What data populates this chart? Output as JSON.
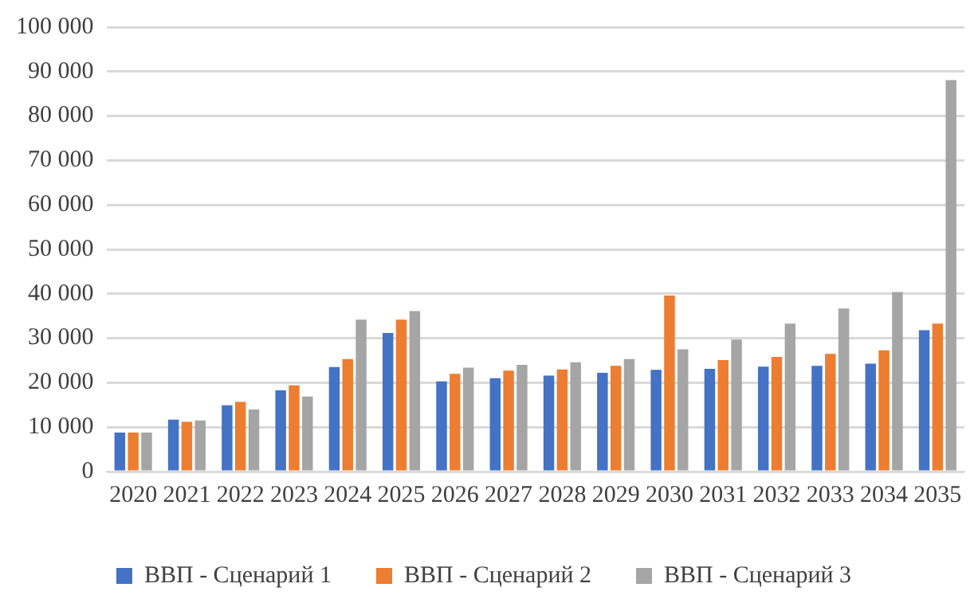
{
  "chart_data": {
    "type": "bar",
    "categories": [
      "2020",
      "2021",
      "2022",
      "2023",
      "2024",
      "2025",
      "2026",
      "2027",
      "2028",
      "2029",
      "2030",
      "2031",
      "2032",
      "2033",
      "2034",
      "2035"
    ],
    "series": [
      {
        "name": "ВВП - Сценарий 1",
        "color": "#4472c4",
        "values": [
          8800,
          11700,
          14900,
          18300,
          23500,
          31200,
          20300,
          21000,
          21600,
          22200,
          22900,
          23100,
          23600,
          23800,
          24300,
          31800
        ]
      },
      {
        "name": "ВВП - Сценарий 2",
        "color": "#ed7d31",
        "values": [
          8800,
          11200,
          15700,
          19400,
          25300,
          34200,
          22000,
          22700,
          23000,
          23800,
          39600,
          25100,
          25800,
          26500,
          27300,
          33300
        ]
      },
      {
        "name": "ВВП - Сценарий 3",
        "color": "#a5a5a5",
        "values": [
          8800,
          11500,
          14000,
          16900,
          34200,
          36100,
          23400,
          24000,
          24600,
          25300,
          27500,
          29700,
          33300,
          36700,
          40400,
          88100
        ]
      }
    ],
    "ylim": [
      0,
      100000
    ],
    "yticks": [
      {
        "value": 0,
        "label": "0"
      },
      {
        "value": 10000,
        "label": "10 000"
      },
      {
        "value": 20000,
        "label": "20 000"
      },
      {
        "value": 30000,
        "label": "30 000"
      },
      {
        "value": 40000,
        "label": "40 000"
      },
      {
        "value": 50000,
        "label": "50 000"
      },
      {
        "value": 60000,
        "label": "60 000"
      },
      {
        "value": 70000,
        "label": "70 000"
      },
      {
        "value": 80000,
        "label": "80 000"
      },
      {
        "value": 90000,
        "label": "90 000"
      },
      {
        "value": 100000,
        "label": "100 000"
      }
    ],
    "grid": "y",
    "legend": "bottom"
  }
}
